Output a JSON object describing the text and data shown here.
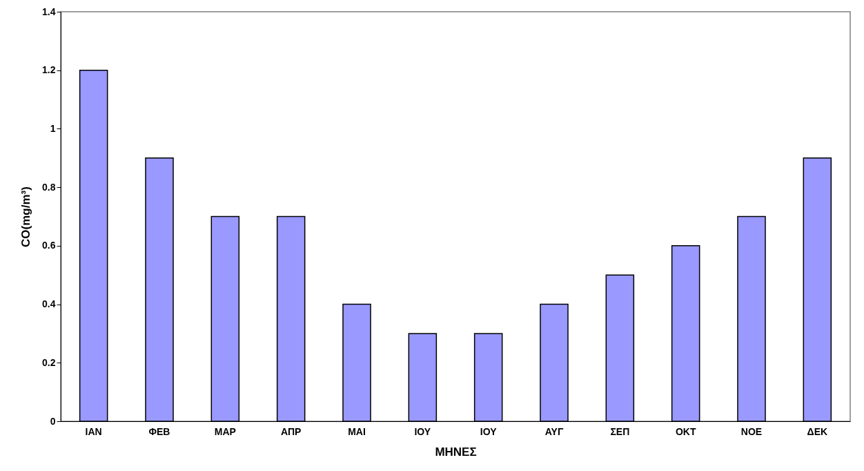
{
  "chart_data": {
    "type": "bar",
    "xlabel": "ΜΗΝΕΣ",
    "ylabel": "CO(mg/m³)",
    "categories": [
      "ΙΑΝ",
      "ΦΕΒ",
      "ΜΑΡ",
      "ΑΠΡ",
      "ΜΑΙ",
      "ΙΟΥ",
      "ΙΟΥ",
      "ΑΥΓ",
      "ΣΕΠ",
      "ΟΚΤ",
      "ΝΟΕ",
      "ΔΕΚ"
    ],
    "values": [
      1.2,
      0.9,
      0.7,
      0.7,
      0.4,
      0.3,
      0.3,
      0.4,
      0.5,
      0.6,
      0.7,
      0.9
    ],
    "color": "#9999ff",
    "ylim": [
      0,
      1.4
    ],
    "yticks": [
      0,
      0.2,
      0.4,
      0.6,
      0.8,
      1,
      1.2,
      1.4
    ],
    "grid": false
  }
}
